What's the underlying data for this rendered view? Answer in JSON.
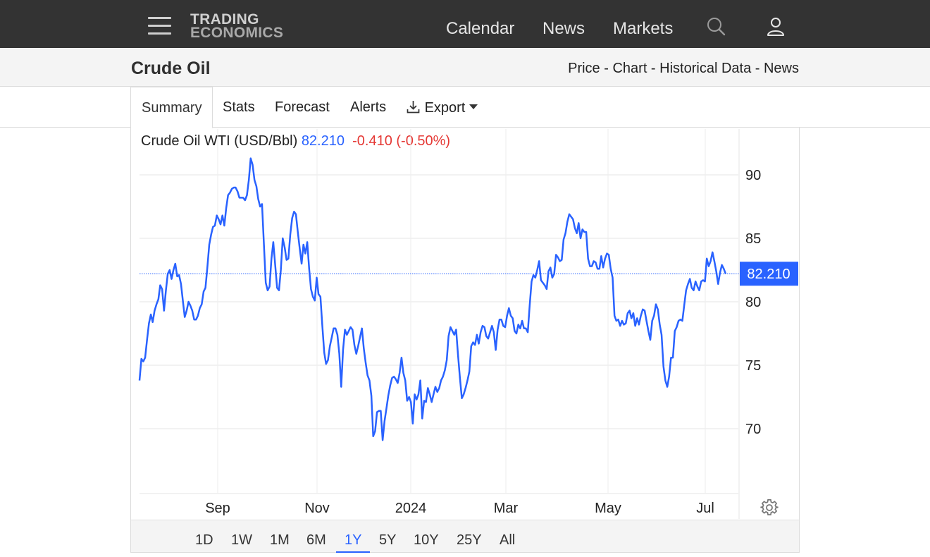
{
  "header": {
    "logo_line1": "TRADING",
    "logo_line2": "ECONOMICS",
    "nav": [
      "Calendar",
      "News",
      "Markets"
    ],
    "icons": [
      "menu-icon",
      "search-icon",
      "user-icon"
    ]
  },
  "subheader": {
    "title": "Crude Oil",
    "links": [
      "Price",
      "Chart",
      "Historical Data",
      "News"
    ],
    "separator": " - "
  },
  "tabs": [
    "Summary",
    "Stats",
    "Forecast",
    "Alerts",
    "Export"
  ],
  "active_tab": "Summary",
  "quote": {
    "name": "Crude Oil WTI (USD/Bbl)",
    "price": "82.210",
    "change": "-0.410",
    "change_pct": "(-0.50%)"
  },
  "ranges": [
    "1D",
    "1W",
    "1M",
    "6M",
    "1Y",
    "5Y",
    "10Y",
    "25Y",
    "All"
  ],
  "active_range": "1Y",
  "colors": {
    "line": "#2962ff",
    "negative": "#e53935",
    "topbar": "#333333"
  },
  "chart_data": {
    "type": "line",
    "series": [
      {
        "name": "Crude Oil WTI (USD/Bbl)",
        "values": [
          73.8,
          75.5,
          75.3,
          75.6,
          77,
          78.3,
          79,
          78.4,
          79.3,
          79.8,
          80.2,
          81.3,
          81,
          79.3,
          80.9,
          82.2,
          82.5,
          81.8,
          82.5,
          83,
          82,
          82.1,
          81.4,
          80.1,
          78.8,
          79.3,
          80,
          79.7,
          79.3,
          78.6,
          78.6,
          78.9,
          79.5,
          79.8,
          80.8,
          81.1,
          82.7,
          84.5,
          85.3,
          85.9,
          86,
          86.8,
          86.5,
          86.1,
          86.8,
          86,
          87.4,
          88.4,
          88.6,
          88.9,
          89,
          89,
          88.7,
          88.2,
          88.2,
          88.2,
          88,
          88.4,
          89.6,
          91.3,
          90.8,
          89.6,
          89.1,
          88.1,
          87.5,
          87.7,
          84.5,
          81.5,
          80.9,
          81.2,
          83.4,
          84.7,
          82.9,
          81.1,
          80.9,
          82.5,
          85,
          84.3,
          83.3,
          83.4,
          85.3,
          86.6,
          87.1,
          86.9,
          85.5,
          84.2,
          83,
          84.5,
          83.8,
          84.7,
          82.6,
          81,
          80.4,
          80.1,
          81.9,
          80.6,
          80.4,
          78.1,
          76,
          75.1,
          75.4,
          76.5,
          77.2,
          77.9,
          77.9,
          77.4,
          75.9,
          73.3,
          76.2,
          77.8,
          77.4,
          77.7,
          78,
          77.8,
          76.6,
          75.9,
          76.5,
          77.2,
          77.9,
          76.3,
          75.2,
          74.2,
          73.8,
          72.6,
          69.4,
          69.8,
          71.3,
          71.4,
          71.4,
          69.1,
          70.6,
          71.6,
          72.6,
          73.4,
          74,
          74.1,
          73.9,
          73.6,
          74.4,
          75.6,
          74.4,
          73.8,
          72.2,
          72.5,
          72.1,
          70.4,
          72.7,
          72.3,
          72.7,
          73.8,
          70.8,
          72.2,
          72.1,
          73.2,
          72.7,
          72.1,
          72.7,
          73.3,
          72.9,
          73.2,
          73.8,
          74.1,
          74.6,
          75.4,
          77.3,
          78,
          77.7,
          77.4,
          77.8,
          75.8,
          74,
          72.4,
          72.7,
          73.2,
          73.8,
          74.5,
          76.5,
          76.8,
          76.6,
          77.4,
          76.7,
          77.6,
          78.1,
          78,
          77.3,
          77.1,
          77.6,
          78.1,
          77.6,
          76.2,
          77.8,
          78.6,
          78.6,
          78.1,
          78,
          78.9,
          79.5,
          78.9,
          78.7,
          77.7,
          77.5,
          78.2,
          77.9,
          78.5,
          77.9,
          77.9,
          77.6,
          79.7,
          81.6,
          82.1,
          81.9,
          82.5,
          83.2,
          81.7,
          81.5,
          81.3,
          81,
          82.4,
          82.7,
          81.9,
          82.2,
          83.7,
          83.5,
          83.2,
          83.3,
          84.9,
          85.4,
          86.3,
          86.9,
          86.7,
          86.5,
          85.8,
          85.4,
          86.2,
          85,
          85.7,
          85.5,
          85.5,
          83.4,
          82.8,
          82.8,
          83.2,
          83.1,
          82.6,
          82.6,
          83.6,
          82.7,
          83.4,
          83.8,
          83.7,
          82.6,
          81.9,
          78.9,
          78.5,
          78.6,
          78.1,
          78.5,
          78.2,
          78.3,
          79.1,
          79.3,
          78.7,
          79.1,
          78.1,
          78.7,
          78.2,
          78.9,
          79.4,
          79.3,
          78.5,
          77.7,
          77,
          78.5,
          78.9,
          79.8,
          79.4,
          78.2,
          77.4,
          74.9,
          73.8,
          73.3,
          74.1,
          75.6,
          75.6,
          77.7,
          78,
          78.5,
          78.6,
          78.5,
          79.7,
          80.9,
          81.4,
          81.8,
          81.1,
          80.9,
          81.6,
          81.2,
          80.9,
          81.6,
          81.7,
          81.6,
          83.4,
          82.8,
          83.2,
          83.9,
          83.2,
          82.4,
          81.4,
          82.3,
          82.9,
          82.6,
          82.2
        ]
      }
    ],
    "y_ticks": [
      90,
      85,
      80,
      75,
      70
    ],
    "ylim": [
      65,
      92.5
    ],
    "x_ticks": [
      "Sep",
      "Nov",
      "2024",
      "Mar",
      "May",
      "Jul"
    ],
    "last_value": "82.210",
    "settings_icon": "gear-icon"
  }
}
